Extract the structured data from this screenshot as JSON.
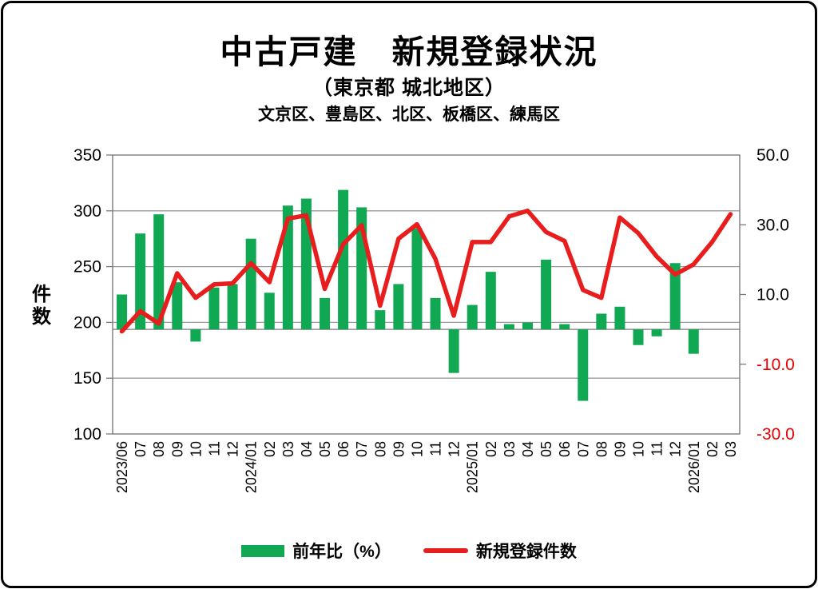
{
  "frame": {
    "background": "#ffffff",
    "border_color": "#000000"
  },
  "header": {
    "title": "中古戸建　新規登録状況",
    "subtitle": "（東京都 城北地区）",
    "region_note": "文京区、豊島区、北区、板橋区、練馬区"
  },
  "legend": {
    "items": [
      {
        "label": "前年比（%）",
        "marker": "bar",
        "color": "#10a853"
      },
      {
        "label": "新規登録件数",
        "marker": "line",
        "color": "#e81d1d"
      }
    ]
  },
  "chart_data": {
    "type": "combo-bar-line",
    "categories": [
      "2023/06",
      "07",
      "08",
      "09",
      "10",
      "11",
      "12",
      "2024/01",
      "02",
      "03",
      "04",
      "05",
      "06",
      "07",
      "08",
      "09",
      "10",
      "11",
      "12",
      "2025/01",
      "02",
      "03",
      "04",
      "05",
      "06",
      "07",
      "08",
      "09",
      "10",
      "11",
      "12",
      "2026/01",
      "02",
      "03"
    ],
    "series": [
      {
        "name": "前年比（%）",
        "type": "bar",
        "axis": "right",
        "color": "#10a853",
        "values": [
          10,
          27.5,
          33,
          13.5,
          -3.5,
          12,
          13,
          26,
          10.5,
          35.5,
          37.5,
          9,
          40,
          35,
          5.5,
          13,
          29,
          9,
          -12.5,
          7,
          16.5,
          1.5,
          2,
          20,
          1.5,
          -20.5,
          4.5,
          6.5,
          -4.5,
          -2,
          19,
          -7,
          null,
          null
        ]
      },
      {
        "name": "新規登録件数",
        "type": "line",
        "axis": "left",
        "color": "#e81d1d",
        "values": [
          192,
          210,
          199,
          244,
          222,
          234,
          235,
          253,
          236,
          293,
          296,
          230,
          270,
          287,
          215,
          275,
          288,
          257,
          206,
          272,
          272,
          295,
          300,
          281,
          273,
          229,
          222,
          294,
          280,
          259,
          243,
          252,
          272,
          297
        ]
      }
    ],
    "left_axis": {
      "title": "件数",
      "min": 100,
      "max": 350,
      "tick_interval": 50,
      "tick_labels": [
        "350",
        "300",
        "250",
        "200",
        "150",
        "100"
      ],
      "label_color": "#000000"
    },
    "right_axis": {
      "min": -30,
      "max": 50,
      "tick_interval": 20,
      "tick_labels": [
        "50.0",
        "30.0",
        "10.0",
        "-10.0",
        "-30.0"
      ],
      "positive_color": "#000000",
      "negative_color": "#e60000"
    },
    "grid": "horizontal",
    "gridline_color": "#9b9b9b",
    "plot_border_color": "#7a7a7a",
    "legend_position": "bottom"
  }
}
